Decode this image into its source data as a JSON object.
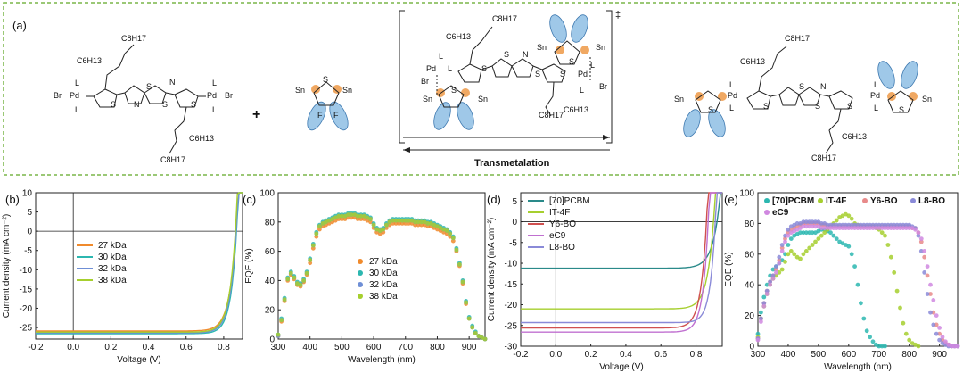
{
  "panel_a": {
    "label": "(a)",
    "plus": "+",
    "dagger": "‡",
    "transmetalation_label": "Transmetalation",
    "mol_texts": {
      "c6h13": "C6H13",
      "c8h17": "C8H17",
      "L": "L",
      "Pd": "Pd",
      "Br": "Br",
      "S": "S",
      "N": "N",
      "Sn": "Sn",
      "F": "F"
    },
    "colors": {
      "frame": "#7ab648",
      "f_lobe": "#9fc8e8",
      "f_lobe_stroke": "#3e79b0",
      "s_dot": "#f0a862"
    }
  },
  "chart_data": [
    {
      "panel": "(b)",
      "type": "line",
      "xlabel": "Voltage (V)",
      "ylabel": "Current density (mA cm⁻²)",
      "xlim": [
        -0.2,
        0.9
      ],
      "ylim": [
        -28,
        10
      ],
      "xticks": [
        -0.2,
        0.0,
        0.2,
        0.4,
        0.6,
        0.8
      ],
      "yticks": [
        10,
        5,
        0,
        -5,
        -10,
        -15,
        -20,
        -25
      ],
      "xtick_labels": [
        "-0.2",
        "0.0",
        "0.2",
        "0.4",
        "0.6",
        "0.8"
      ],
      "ytick_labels": [
        "10",
        "5",
        "0",
        "-5",
        "-10",
        "-15",
        "-20",
        "-25"
      ],
      "legend_position": "center-left",
      "series": [
        {
          "name": "27 kDa",
          "color": "#f08a2c",
          "jsc": -25.9,
          "voc": 0.865,
          "ff": 0.71
        },
        {
          "name": "30 kDa",
          "color": "#2cb7b0",
          "jsc": -26.6,
          "voc": 0.868,
          "ff": 0.73
        },
        {
          "name": "32 kDa",
          "color": "#6f8fd6",
          "jsc": -26.4,
          "voc": 0.866,
          "ff": 0.72
        },
        {
          "name": "38 kDa",
          "color": "#a6cf2e",
          "jsc": -26.2,
          "voc": 0.862,
          "ff": 0.72
        }
      ]
    },
    {
      "panel": "(c)",
      "type": "scatter",
      "xlabel": "Wavelength (nm)",
      "ylabel": "EQE (%)",
      "xlim": [
        300,
        950
      ],
      "ylim": [
        0,
        100
      ],
      "xticks": [
        300,
        400,
        500,
        600,
        700,
        800,
        900
      ],
      "yticks": [
        0,
        20,
        40,
        60,
        80,
        100
      ],
      "xtick_labels": [
        "300",
        "400",
        "500",
        "600",
        "700",
        "800",
        "900"
      ],
      "ytick_labels": [
        "0",
        "20",
        "40",
        "60",
        "80",
        "100"
      ],
      "legend_position": "center",
      "x": [
        300,
        310,
        320,
        330,
        340,
        350,
        360,
        370,
        380,
        390,
        400,
        410,
        420,
        430,
        440,
        450,
        460,
        470,
        480,
        490,
        500,
        510,
        520,
        530,
        540,
        550,
        560,
        570,
        580,
        590,
        600,
        610,
        620,
        630,
        640,
        650,
        660,
        670,
        680,
        690,
        700,
        710,
        720,
        730,
        740,
        750,
        760,
        770,
        780,
        790,
        800,
        810,
        820,
        830,
        840,
        850,
        860,
        870,
        880,
        890,
        900,
        910,
        920,
        930,
        940,
        950
      ],
      "series": [
        {
          "name": "27 kDa",
          "color": "#f08a2c",
          "values": [
            2,
            12,
            26,
            40,
            44,
            41,
            37,
            36,
            39,
            44,
            52,
            62,
            70,
            75,
            77,
            78,
            79,
            80,
            81,
            82,
            82,
            82,
            83,
            83,
            83,
            82,
            82,
            82,
            81,
            80,
            76,
            73,
            72,
            73,
            76,
            78,
            79,
            79,
            79,
            79,
            79,
            79,
            79,
            78,
            78,
            78,
            78,
            77,
            77,
            76,
            75,
            74,
            73,
            72,
            70,
            67,
            60,
            50,
            38,
            24,
            14,
            8,
            4,
            2,
            1,
            0
          ]
        },
        {
          "name": "30 kDa",
          "color": "#2cb7b0",
          "values": [
            3,
            14,
            28,
            42,
            46,
            43,
            39,
            38,
            41,
            46,
            55,
            65,
            73,
            78,
            80,
            81,
            82,
            83,
            84,
            85,
            85,
            85,
            86,
            86,
            86,
            85,
            85,
            85,
            84,
            83,
            79,
            76,
            75,
            76,
            79,
            81,
            82,
            82,
            82,
            82,
            82,
            82,
            82,
            81,
            81,
            81,
            81,
            80,
            80,
            79,
            78,
            77,
            76,
            75,
            73,
            70,
            62,
            52,
            40,
            26,
            15,
            9,
            5,
            2,
            1,
            0
          ]
        },
        {
          "name": "32 kDa",
          "color": "#6f8fd6",
          "values": [
            2,
            13,
            27,
            41,
            45,
            42,
            38,
            37,
            40,
            45,
            54,
            64,
            72,
            77,
            79,
            80,
            81,
            82,
            83,
            84,
            84,
            84,
            85,
            85,
            85,
            84,
            84,
            84,
            83,
            82,
            78,
            75,
            74,
            75,
            78,
            80,
            81,
            81,
            81,
            81,
            81,
            81,
            81,
            80,
            80,
            80,
            80,
            79,
            79,
            78,
            77,
            76,
            75,
            74,
            72,
            69,
            61,
            51,
            39,
            25,
            14,
            8,
            4,
            2,
            1,
            0
          ]
        },
        {
          "name": "38 kDa",
          "color": "#a6cf2e",
          "values": [
            3,
            13,
            27,
            41,
            45,
            42,
            38,
            37,
            40,
            45,
            54,
            64,
            72,
            77,
            79,
            80,
            81,
            82,
            83,
            84,
            84,
            84,
            85,
            85,
            85,
            84,
            84,
            84,
            83,
            82,
            78,
            75,
            74,
            75,
            78,
            80,
            81,
            81,
            81,
            81,
            81,
            81,
            81,
            80,
            80,
            80,
            80,
            79,
            79,
            78,
            77,
            76,
            75,
            74,
            72,
            69,
            61,
            51,
            39,
            25,
            14,
            8,
            4,
            2,
            1,
            0
          ]
        }
      ]
    },
    {
      "panel": "(d)",
      "type": "line",
      "xlabel": "Voltage (V)",
      "ylabel": "Current density (mA cm⁻²)",
      "xlim": [
        -0.2,
        0.95
      ],
      "ylim": [
        -30,
        7
      ],
      "xticks": [
        -0.2,
        0.0,
        0.2,
        0.4,
        0.6,
        0.8
      ],
      "yticks": [
        5,
        0,
        -5,
        -10,
        -15,
        -20,
        -25,
        -30
      ],
      "xtick_labels": [
        "-0.2",
        "0.0",
        "0.2",
        "0.4",
        "0.6",
        "0.8"
      ],
      "ytick_labels": [
        "5",
        "0",
        "-5",
        "-10",
        "-15",
        "-20",
        "-25",
        "-30"
      ],
      "legend_position": "top-left",
      "series": [
        {
          "name": "[70]PCBM",
          "color": "#2a8a8a",
          "jsc": -11.2,
          "voc": 0.92,
          "ff": 0.68
        },
        {
          "name": "IT-4F",
          "color": "#a6cf2e",
          "jsc": -21.0,
          "voc": 0.9,
          "ff": 0.7
        },
        {
          "name": "Y6-BO",
          "color": "#d0504f",
          "jsc": -25.6,
          "voc": 0.86,
          "ff": 0.72
        },
        {
          "name": "eC9",
          "color": "#c070d0",
          "jsc": -26.6,
          "voc": 0.87,
          "ff": 0.73
        },
        {
          "name": "L8-BO",
          "color": "#8a8ad8",
          "jsc": -24.3,
          "voc": 0.91,
          "ff": 0.74
        }
      ]
    },
    {
      "panel": "(e)",
      "type": "scatter",
      "xlabel": "Wavelength (nm)",
      "ylabel": "EQE (%)",
      "xlim": [
        300,
        960
      ],
      "ylim": [
        0,
        100
      ],
      "xticks": [
        300,
        400,
        500,
        600,
        700,
        800,
        900
      ],
      "yticks": [
        0,
        20,
        40,
        60,
        80,
        100
      ],
      "xtick_labels": [
        "300",
        "400",
        "500",
        "600",
        "700",
        "800",
        "900"
      ],
      "ytick_labels": [
        "0",
        "20",
        "40",
        "60",
        "80",
        "100"
      ],
      "legend_position": "top",
      "x": [
        300,
        310,
        320,
        330,
        340,
        350,
        360,
        370,
        380,
        390,
        400,
        410,
        420,
        430,
        440,
        450,
        460,
        470,
        480,
        490,
        500,
        510,
        520,
        530,
        540,
        550,
        560,
        570,
        580,
        590,
        600,
        610,
        620,
        630,
        640,
        650,
        660,
        670,
        680,
        690,
        700,
        710,
        720,
        730,
        740,
        750,
        760,
        770,
        780,
        790,
        800,
        810,
        820,
        830,
        840,
        850,
        860,
        870,
        880,
        890,
        900,
        910,
        920,
        930,
        940,
        950,
        960
      ],
      "series": [
        {
          "name": "[70]PCBM",
          "color": "#2cb7b0",
          "values": [
            8,
            22,
            32,
            40,
            46,
            50,
            52,
            54,
            56,
            60,
            66,
            70,
            72,
            73,
            74,
            74,
            74,
            74,
            74,
            74,
            75,
            76,
            76,
            75,
            74,
            72,
            70,
            68,
            67,
            66,
            65,
            60,
            52,
            40,
            28,
            18,
            10,
            6,
            3,
            1,
            0,
            0,
            0,
            null,
            null,
            null,
            null,
            null,
            null,
            null,
            null,
            null,
            null,
            null,
            null,
            null,
            null,
            null,
            null,
            null,
            null,
            null,
            null,
            null,
            null,
            null,
            null
          ]
        },
        {
          "name": "IT-4F",
          "color": "#a6cf2e",
          "values": [
            6,
            18,
            26,
            34,
            40,
            44,
            46,
            48,
            50,
            55,
            60,
            62,
            60,
            58,
            57,
            60,
            62,
            64,
            66,
            68,
            70,
            72,
            74,
            76,
            78,
            80,
            82,
            84,
            85,
            86,
            85,
            83,
            80,
            79,
            78,
            78,
            78,
            78,
            78,
            77,
            76,
            74,
            72,
            66,
            58,
            48,
            36,
            25,
            15,
            8,
            4,
            2,
            1,
            0,
            null,
            null,
            null,
            null,
            null,
            null,
            null,
            null,
            null,
            null,
            null,
            null,
            null
          ]
        },
        {
          "name": "Y6-BO",
          "color": "#e88a8a",
          "values": [
            5,
            18,
            28,
            36,
            42,
            46,
            50,
            56,
            64,
            70,
            74,
            76,
            77,
            78,
            79,
            80,
            80,
            80,
            80,
            80,
            80,
            79,
            79,
            78,
            78,
            78,
            78,
            78,
            78,
            78,
            78,
            78,
            78,
            78,
            78,
            78,
            78,
            78,
            78,
            78,
            78,
            78,
            78,
            78,
            78,
            78,
            78,
            78,
            78,
            78,
            78,
            77,
            77,
            74,
            68,
            58,
            46,
            34,
            22,
            14,
            8,
            4,
            2,
            1,
            0,
            0,
            0
          ]
        },
        {
          "name": "L8-BO",
          "color": "#8a8ad8",
          "values": [
            5,
            18,
            28,
            36,
            42,
            46,
            52,
            58,
            66,
            72,
            76,
            78,
            79,
            80,
            80,
            81,
            81,
            81,
            81,
            81,
            81,
            80,
            80,
            79,
            79,
            79,
            79,
            79,
            79,
            79,
            79,
            79,
            79,
            79,
            79,
            79,
            79,
            79,
            79,
            79,
            79,
            79,
            79,
            79,
            79,
            79,
            79,
            79,
            79,
            79,
            79,
            78,
            77,
            72,
            62,
            48,
            34,
            22,
            14,
            8,
            4,
            2,
            1,
            0,
            0,
            0,
            0
          ]
        },
        {
          "name": "eC9",
          "color": "#d088e0",
          "values": [
            4,
            16,
            26,
            34,
            40,
            44,
            48,
            54,
            62,
            68,
            72,
            74,
            75,
            76,
            77,
            78,
            78,
            78,
            78,
            78,
            78,
            77,
            77,
            77,
            77,
            77,
            77,
            77,
            77,
            77,
            77,
            77,
            77,
            77,
            77,
            77,
            77,
            77,
            77,
            77,
            77,
            77,
            77,
            77,
            77,
            77,
            77,
            77,
            77,
            77,
            77,
            77,
            76,
            74,
            70,
            62,
            52,
            40,
            30,
            20,
            12,
            6,
            3,
            1,
            0,
            0,
            0
          ]
        }
      ]
    }
  ]
}
